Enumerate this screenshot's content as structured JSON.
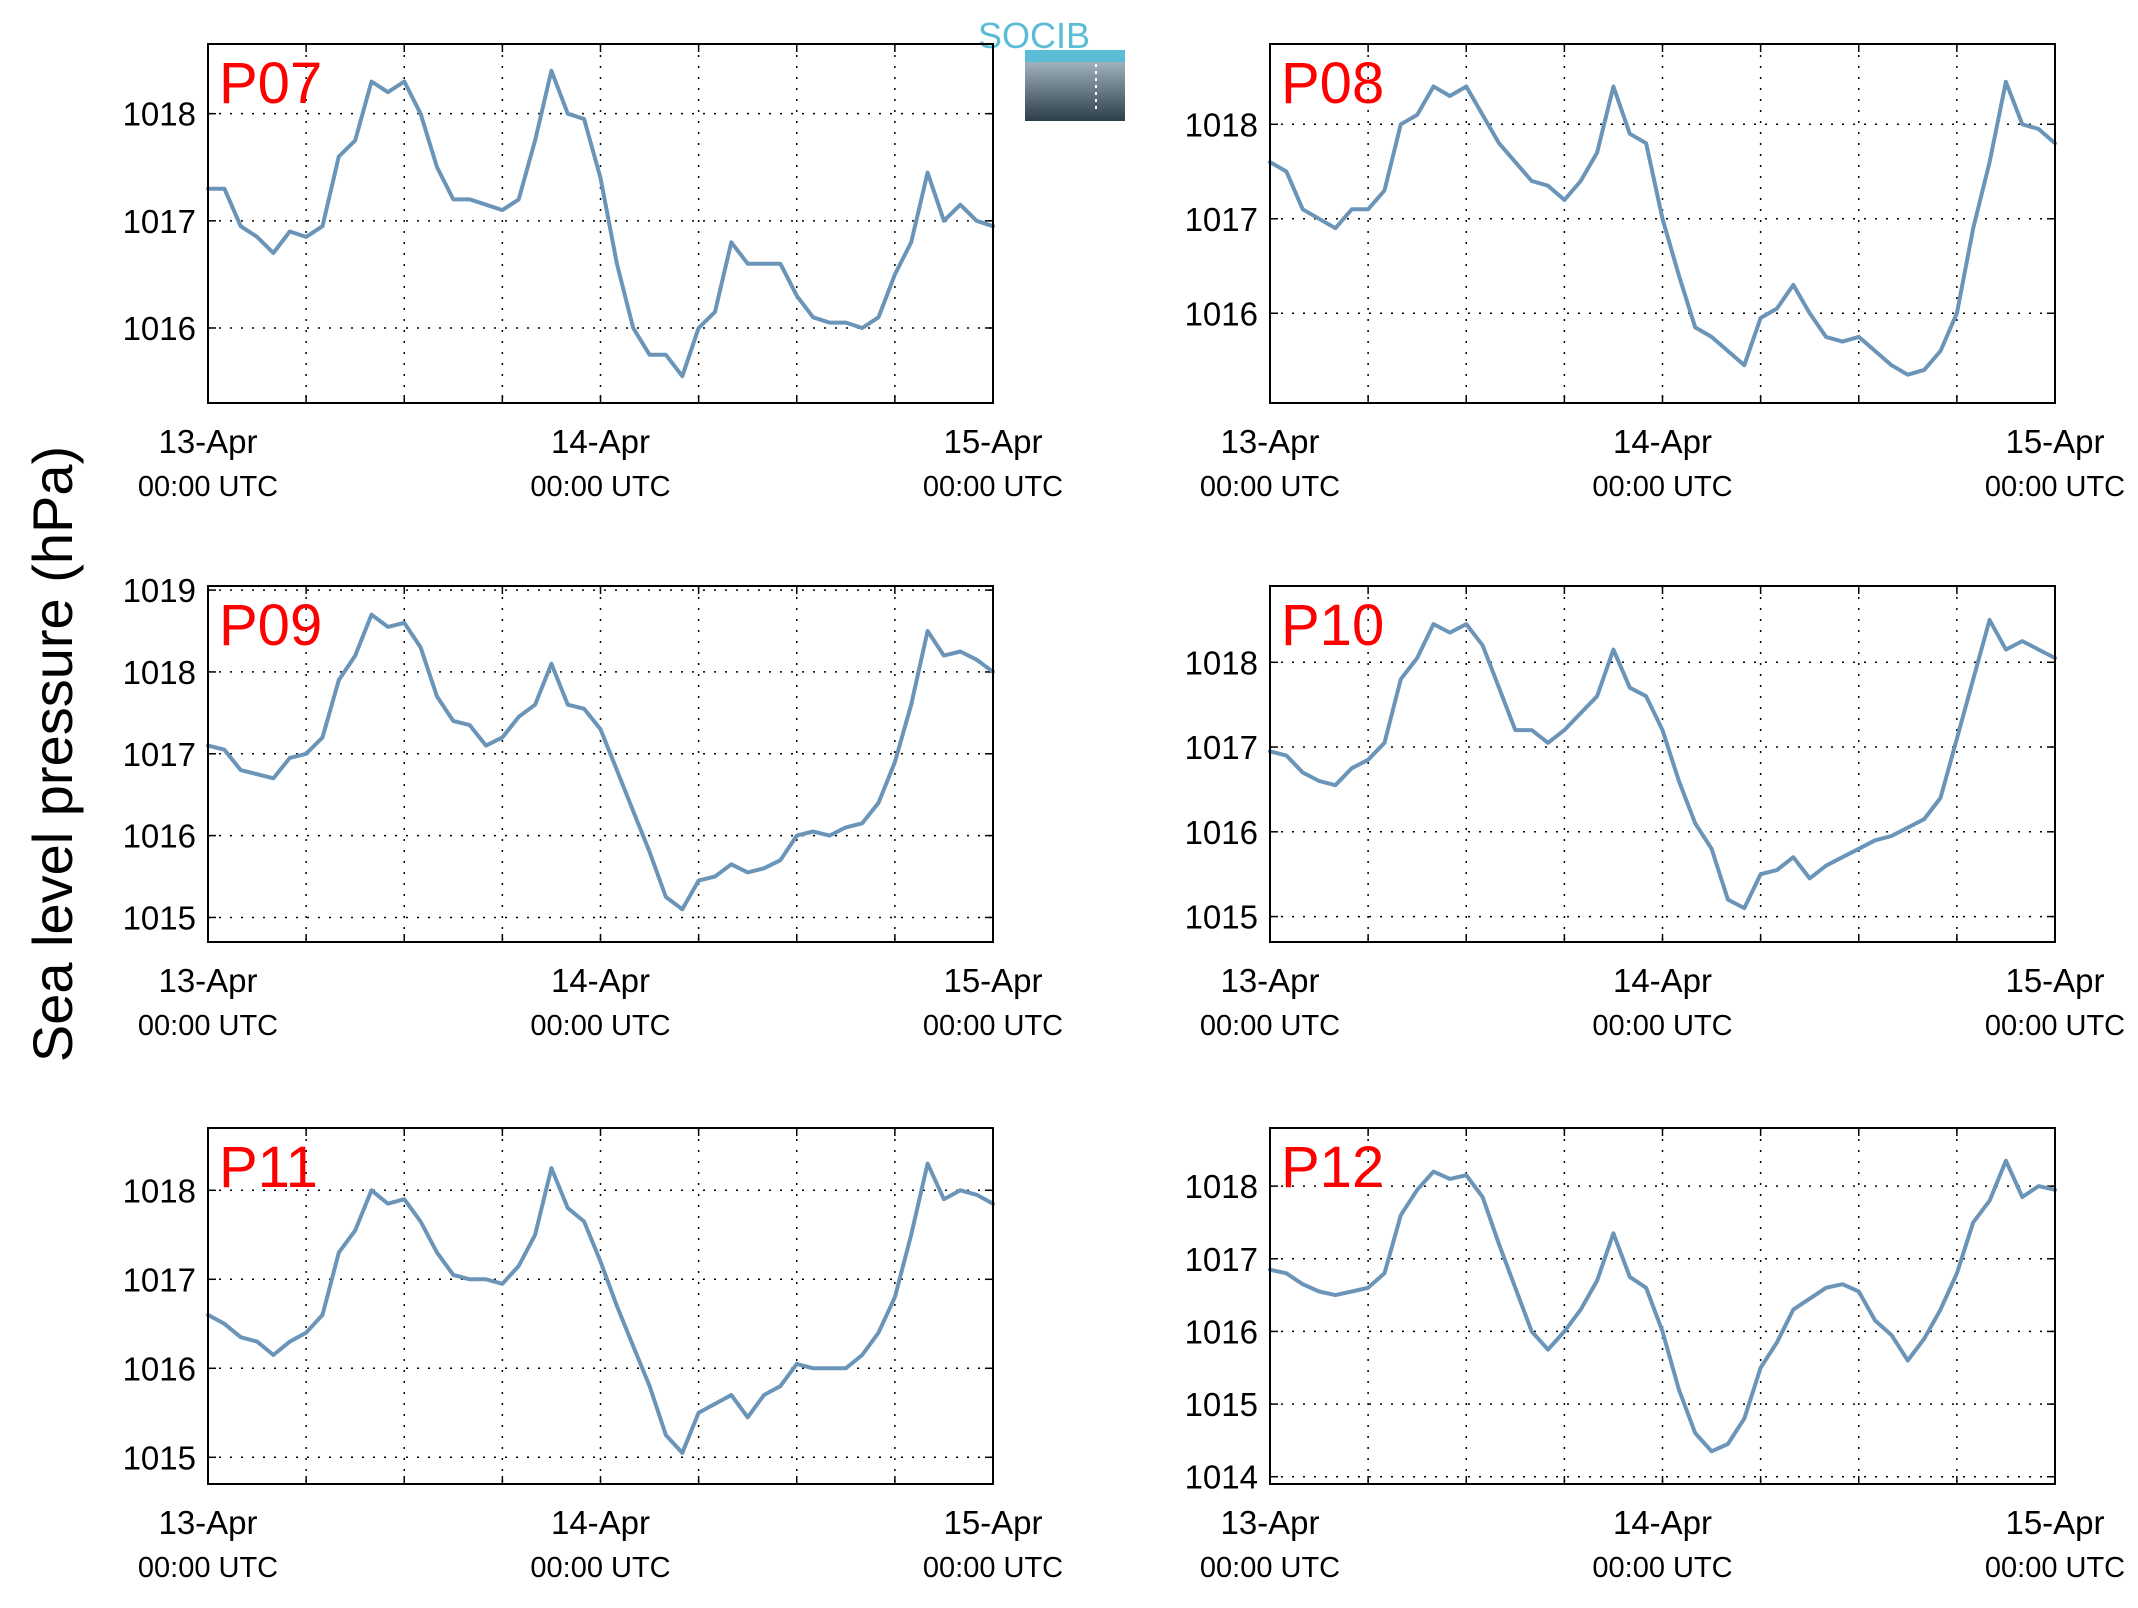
{
  "figure": {
    "ylabel": "Sea level pressure (hPa)",
    "logo_text": "SOCIB",
    "line_color": "#6b95b8",
    "title_color": "#ff0000",
    "grid": "dotted",
    "x_ticks": [
      {
        "day": "13-Apr",
        "time": "00:00 UTC"
      },
      {
        "day": "14-Apr",
        "time": "00:00 UTC"
      },
      {
        "day": "15-Apr",
        "time": "00:00 UTC"
      }
    ]
  },
  "chart_data": [
    {
      "type": "line",
      "title": "P07",
      "xlim": [
        0,
        48
      ],
      "ylim": [
        1015.3,
        1018.65
      ],
      "yticks": [
        1016,
        1017,
        1018
      ],
      "x": [
        0,
        1,
        2,
        3,
        4,
        5,
        6,
        7,
        8,
        9,
        10,
        11,
        12,
        13,
        14,
        15,
        16,
        17,
        18,
        19,
        20,
        21,
        22,
        23,
        24,
        25,
        26,
        27,
        28,
        29,
        30,
        31,
        32,
        33,
        34,
        35,
        36,
        37,
        38,
        39,
        40,
        41,
        42,
        43,
        44,
        45,
        46,
        47,
        48
      ],
      "values": [
        1017.3,
        1017.3,
        1016.95,
        1016.85,
        1016.7,
        1016.9,
        1016.85,
        1016.95,
        1017.6,
        1017.75,
        1018.3,
        1018.2,
        1018.3,
        1018.0,
        1017.5,
        1017.2,
        1017.2,
        1017.15,
        1017.1,
        1017.2,
        1017.75,
        1018.4,
        1018.0,
        1017.95,
        1017.4,
        1016.6,
        1016.0,
        1015.75,
        1015.75,
        1015.55,
        1016.0,
        1016.15,
        1016.8,
        1016.6,
        1016.6,
        1016.6,
        1016.3,
        1016.1,
        1016.05,
        1016.05,
        1016.0,
        1016.1,
        1016.5,
        1016.8,
        1017.45,
        1017.0,
        1017.15,
        1017.0,
        1016.95
      ]
    },
    {
      "type": "line",
      "title": "P08",
      "xlim": [
        0,
        48
      ],
      "ylim": [
        1015.05,
        1018.85
      ],
      "yticks": [
        1016,
        1017,
        1018
      ],
      "x": [
        0,
        1,
        2,
        3,
        4,
        5,
        6,
        7,
        8,
        9,
        10,
        11,
        12,
        13,
        14,
        15,
        16,
        17,
        18,
        19,
        20,
        21,
        22,
        23,
        24,
        25,
        26,
        27,
        28,
        29,
        30,
        31,
        32,
        33,
        34,
        35,
        36,
        37,
        38,
        39,
        40,
        41,
        42,
        43,
        44,
        45,
        46,
        47,
        48
      ],
      "values": [
        1017.6,
        1017.5,
        1017.1,
        1017.0,
        1016.9,
        1017.1,
        1017.1,
        1017.3,
        1018.0,
        1018.1,
        1018.4,
        1018.3,
        1018.4,
        1018.1,
        1017.8,
        1017.6,
        1017.4,
        1017.35,
        1017.2,
        1017.4,
        1017.7,
        1018.4,
        1017.9,
        1017.8,
        1017.0,
        1016.4,
        1015.85,
        1015.75,
        1015.6,
        1015.45,
        1015.95,
        1016.05,
        1016.3,
        1016.0,
        1015.75,
        1015.7,
        1015.75,
        1015.6,
        1015.45,
        1015.35,
        1015.4,
        1015.6,
        1016.0,
        1016.9,
        1017.6,
        1018.45,
        1018.0,
        1017.95,
        1017.8
      ]
    },
    {
      "type": "line",
      "title": "P09",
      "xlim": [
        0,
        48
      ],
      "ylim": [
        1014.7,
        1019.05
      ],
      "yticks": [
        1015,
        1016,
        1017,
        1018,
        1019
      ],
      "x": [
        0,
        1,
        2,
        3,
        4,
        5,
        6,
        7,
        8,
        9,
        10,
        11,
        12,
        13,
        14,
        15,
        16,
        17,
        18,
        19,
        20,
        21,
        22,
        23,
        24,
        25,
        26,
        27,
        28,
        29,
        30,
        31,
        32,
        33,
        34,
        35,
        36,
        37,
        38,
        39,
        40,
        41,
        42,
        43,
        44,
        45,
        46,
        47,
        48
      ],
      "values": [
        1017.1,
        1017.05,
        1016.8,
        1016.75,
        1016.7,
        1016.95,
        1017.0,
        1017.2,
        1017.9,
        1018.2,
        1018.7,
        1018.55,
        1018.6,
        1018.3,
        1017.7,
        1017.4,
        1017.35,
        1017.1,
        1017.2,
        1017.45,
        1017.6,
        1018.1,
        1017.6,
        1017.55,
        1017.3,
        1016.8,
        1016.3,
        1015.8,
        1015.25,
        1015.1,
        1015.45,
        1015.5,
        1015.65,
        1015.55,
        1015.6,
        1015.7,
        1016.0,
        1016.05,
        1016.0,
        1016.1,
        1016.15,
        1016.4,
        1016.9,
        1017.6,
        1018.5,
        1018.2,
        1018.25,
        1018.15,
        1018.0
      ]
    },
    {
      "type": "line",
      "title": "P10",
      "xlim": [
        0,
        48
      ],
      "ylim": [
        1014.7,
        1018.9
      ],
      "yticks": [
        1015,
        1016,
        1017,
        1018
      ],
      "x": [
        0,
        1,
        2,
        3,
        4,
        5,
        6,
        7,
        8,
        9,
        10,
        11,
        12,
        13,
        14,
        15,
        16,
        17,
        18,
        19,
        20,
        21,
        22,
        23,
        24,
        25,
        26,
        27,
        28,
        29,
        30,
        31,
        32,
        33,
        34,
        35,
        36,
        37,
        38,
        39,
        40,
        41,
        42,
        43,
        44,
        45,
        46,
        47,
        48
      ],
      "values": [
        1016.95,
        1016.9,
        1016.7,
        1016.6,
        1016.55,
        1016.75,
        1016.85,
        1017.05,
        1017.8,
        1018.05,
        1018.45,
        1018.35,
        1018.45,
        1018.2,
        1017.7,
        1017.2,
        1017.2,
        1017.05,
        1017.2,
        1017.4,
        1017.6,
        1018.15,
        1017.7,
        1017.6,
        1017.2,
        1016.6,
        1016.1,
        1015.8,
        1015.2,
        1015.1,
        1015.5,
        1015.55,
        1015.7,
        1015.45,
        1015.6,
        1015.7,
        1015.8,
        1015.9,
        1015.95,
        1016.05,
        1016.15,
        1016.4,
        1017.1,
        1017.8,
        1018.5,
        1018.15,
        1018.25,
        1018.15,
        1018.05
      ]
    },
    {
      "type": "line",
      "title": "P11",
      "xlim": [
        0,
        48
      ],
      "ylim": [
        1014.7,
        1018.7
      ],
      "yticks": [
        1015,
        1016,
        1017,
        1018
      ],
      "x": [
        0,
        1,
        2,
        3,
        4,
        5,
        6,
        7,
        8,
        9,
        10,
        11,
        12,
        13,
        14,
        15,
        16,
        17,
        18,
        19,
        20,
        21,
        22,
        23,
        24,
        25,
        26,
        27,
        28,
        29,
        30,
        31,
        32,
        33,
        34,
        35,
        36,
        37,
        38,
        39,
        40,
        41,
        42,
        43,
        44,
        45,
        46,
        47,
        48
      ],
      "values": [
        1016.6,
        1016.5,
        1016.35,
        1016.3,
        1016.15,
        1016.3,
        1016.4,
        1016.6,
        1017.3,
        1017.55,
        1018.0,
        1017.85,
        1017.9,
        1017.65,
        1017.3,
        1017.05,
        1017.0,
        1017.0,
        1016.95,
        1017.15,
        1017.5,
        1018.25,
        1017.8,
        1017.65,
        1017.2,
        1016.7,
        1016.25,
        1015.8,
        1015.25,
        1015.05,
        1015.5,
        1015.6,
        1015.7,
        1015.45,
        1015.7,
        1015.8,
        1016.05,
        1016.0,
        1016.0,
        1016.0,
        1016.15,
        1016.4,
        1016.8,
        1017.5,
        1018.3,
        1017.9,
        1018.0,
        1017.95,
        1017.85
      ]
    },
    {
      "type": "line",
      "title": "P12",
      "xlim": [
        0,
        48
      ],
      "ylim": [
        1013.9,
        1018.8
      ],
      "yticks": [
        1014,
        1015,
        1016,
        1017,
        1018
      ],
      "x": [
        0,
        1,
        2,
        3,
        4,
        5,
        6,
        7,
        8,
        9,
        10,
        11,
        12,
        13,
        14,
        15,
        16,
        17,
        18,
        19,
        20,
        21,
        22,
        23,
        24,
        25,
        26,
        27,
        28,
        29,
        30,
        31,
        32,
        33,
        34,
        35,
        36,
        37,
        38,
        39,
        40,
        41,
        42,
        43,
        44,
        45,
        46,
        47,
        48
      ],
      "values": [
        1016.85,
        1016.8,
        1016.65,
        1016.55,
        1016.5,
        1016.55,
        1016.6,
        1016.8,
        1017.6,
        1017.95,
        1018.2,
        1018.1,
        1018.15,
        1017.85,
        1017.2,
        1016.6,
        1016.0,
        1015.75,
        1016.0,
        1016.3,
        1016.7,
        1017.35,
        1016.75,
        1016.6,
        1016.0,
        1015.2,
        1014.6,
        1014.35,
        1014.45,
        1014.8,
        1015.5,
        1015.85,
        1016.3,
        1016.45,
        1016.6,
        1016.65,
        1016.55,
        1016.15,
        1015.95,
        1015.6,
        1015.9,
        1016.3,
        1016.8,
        1017.5,
        1017.8,
        1018.35,
        1017.85,
        1018.0,
        1017.95
      ]
    }
  ]
}
